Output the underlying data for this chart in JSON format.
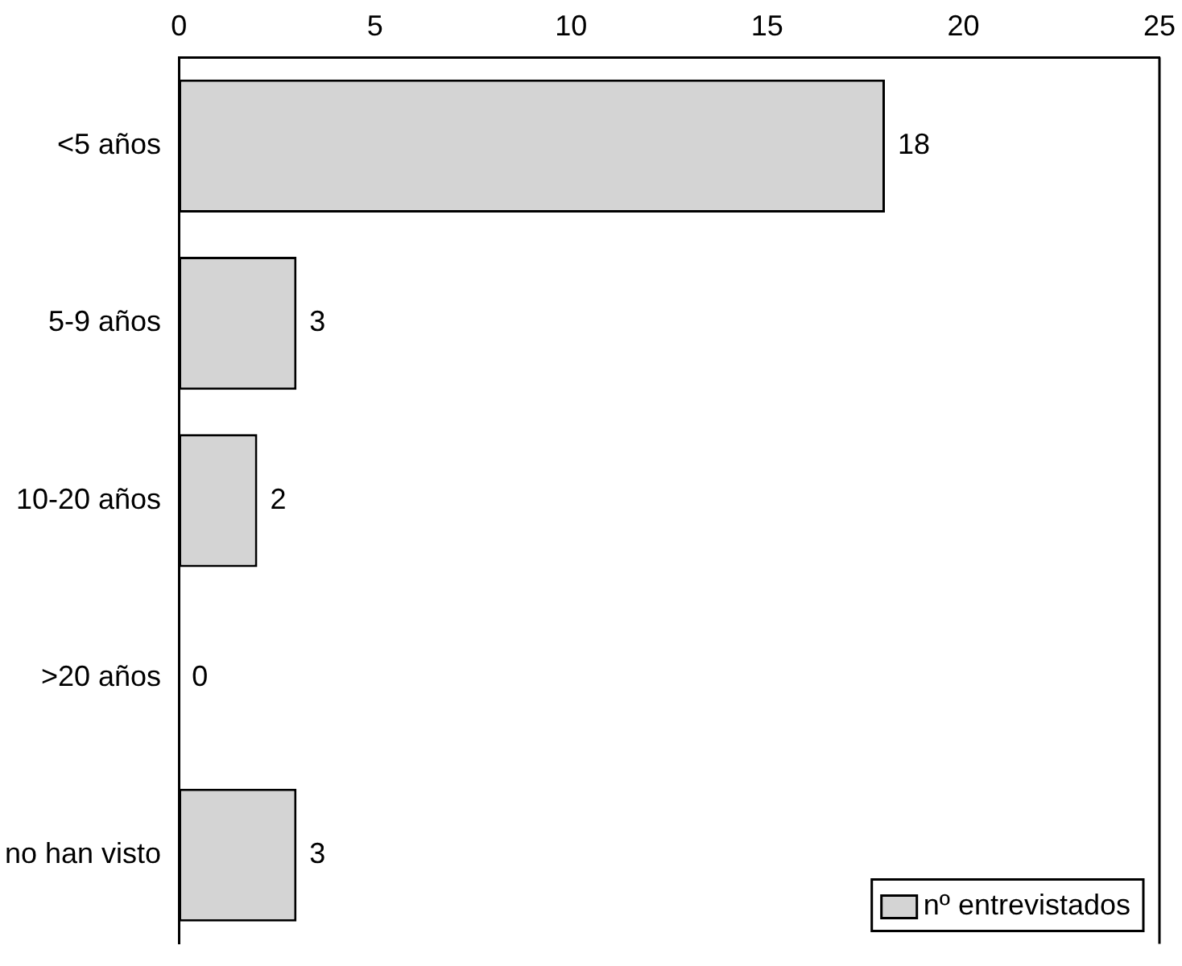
{
  "chart_data": {
    "type": "bar",
    "orientation": "horizontal",
    "categories": [
      "<5 años",
      "5-9 años",
      "10-20 años",
      ">20 años",
      "no han visto"
    ],
    "series": [
      {
        "name": "nº entrevistados",
        "color": "#d4d4d4",
        "values": [
          18,
          3,
          2,
          0,
          3
        ]
      }
    ],
    "xlim": [
      0,
      25
    ],
    "xticks": [
      0,
      5,
      10,
      15,
      20,
      25
    ],
    "data_labels": true,
    "legend": "bottom right",
    "grid": false
  }
}
